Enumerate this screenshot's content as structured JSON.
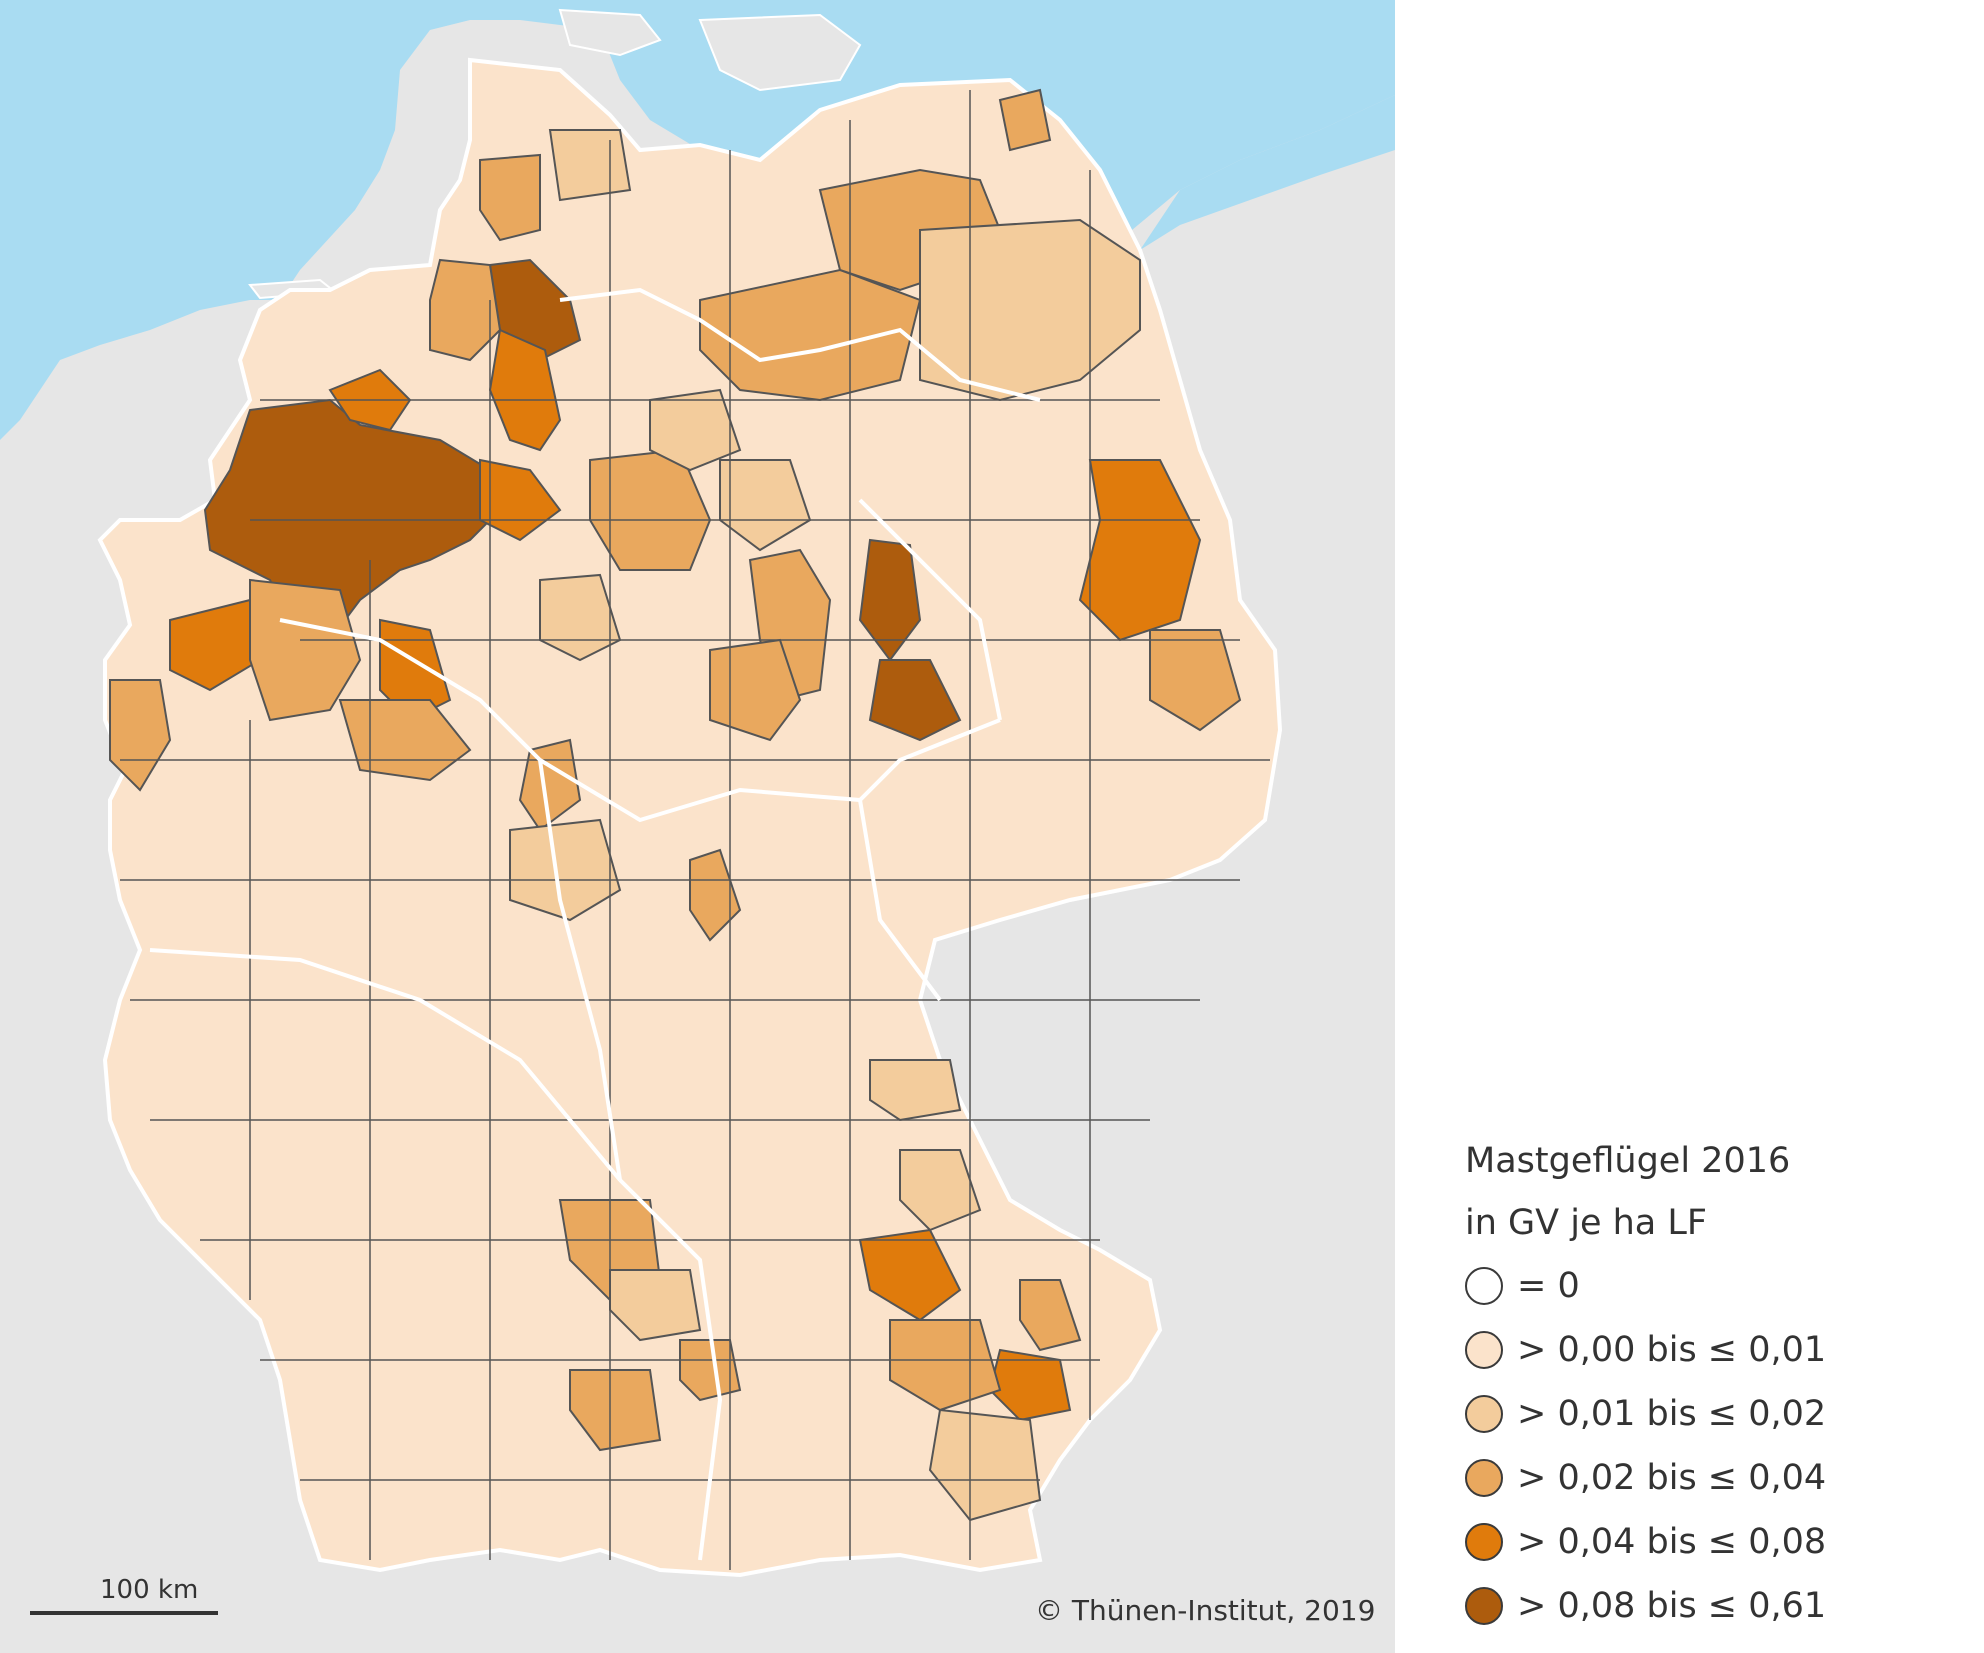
{
  "map": {
    "colors": {
      "sea": "#a9dcf2",
      "neighbor_land": "#e6e6e6",
      "district_border": "#555555",
      "state_border": "#ffffff"
    },
    "scale_label": "100 km",
    "copyright": "© Thünen-Institut, 2019"
  },
  "legend": {
    "title_line1": "Mastgeflügel 2016",
    "title_line2": "in GV je ha LF",
    "classes": [
      {
        "label": "= 0",
        "color": "#ffffff"
      },
      {
        "label": "> 0,00 bis ≤ 0,01",
        "color": "#fbe3cb"
      },
      {
        "label": "> 0,01 bis ≤ 0,02",
        "color": "#f3cc9c"
      },
      {
        "label": "> 0,02 bis ≤ 0,04",
        "color": "#e9a85e"
      },
      {
        "label": "> 0,04 bis ≤ 0,08",
        "color": "#e07b0c"
      },
      {
        "label": "> 0,08 bis ≤ 0,61",
        "color": "#ad5c0d"
      }
    ]
  }
}
